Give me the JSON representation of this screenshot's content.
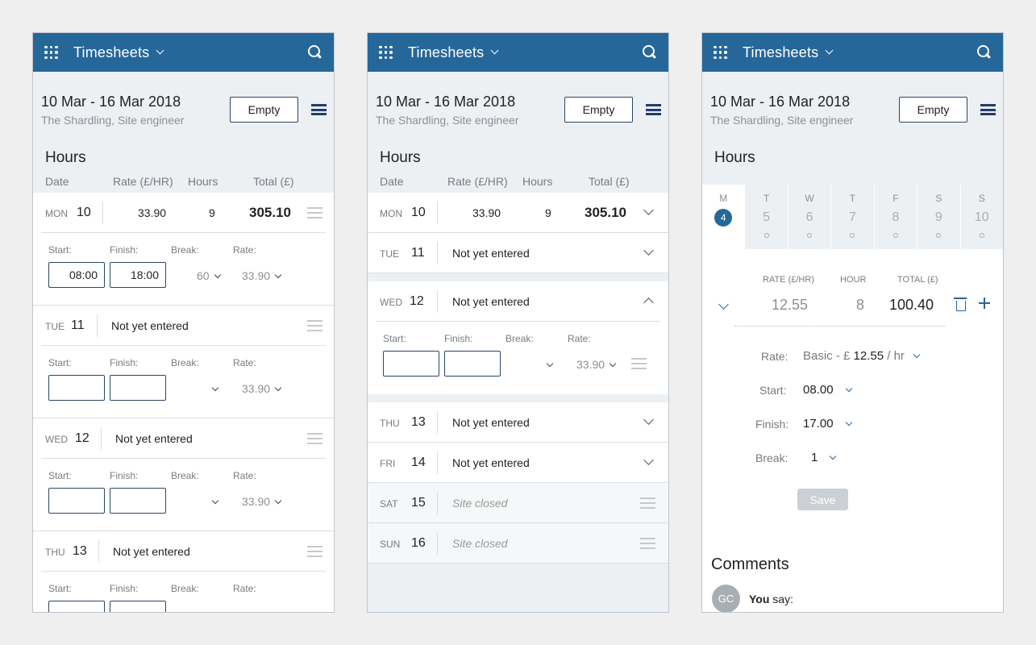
{
  "app": {
    "title": "Timesheets"
  },
  "sheet": {
    "range": "10 Mar - 16 Mar 2018",
    "subtitle": "The Shardling, Site engineer",
    "empty_label": "Empty",
    "hours_title": "Hours"
  },
  "columns": {
    "date": "Date",
    "rate": "Rate (£/HR)",
    "hours": "Hours",
    "total": "Total (£)"
  },
  "labels": {
    "start": "Start:",
    "finish": "Finish:",
    "break": "Break:",
    "rate": "Rate:"
  },
  "panel1": {
    "mon": {
      "dow": "MON",
      "num": "10",
      "rate": "33.90",
      "hours": "9",
      "total": "305.10",
      "start": "08:00",
      "finish": "18:00",
      "break": "60",
      "rate_sel": "33.90"
    },
    "tue": {
      "dow": "TUE",
      "num": "11",
      "status": "Not yet entered",
      "rate_sel": "33.90"
    },
    "wed": {
      "dow": "WED",
      "num": "12",
      "status": "Not yet entered",
      "rate_sel": "33.90"
    },
    "thu": {
      "dow": "THU",
      "num": "13",
      "status": "Not yet entered"
    }
  },
  "panel2": {
    "mon": {
      "dow": "MON",
      "num": "10",
      "rate": "33.90",
      "hours": "9",
      "total": "305.10"
    },
    "tue": {
      "dow": "TUE",
      "num": "11",
      "status": "Not yet entered"
    },
    "wed": {
      "dow": "WED",
      "num": "12",
      "status": "Not yet entered",
      "rate_sel": "33.90"
    },
    "thu": {
      "dow": "THU",
      "num": "13",
      "status": "Not yet entered"
    },
    "fri": {
      "dow": "FRI",
      "num": "14",
      "status": "Not yet entered"
    },
    "sat": {
      "dow": "SAT",
      "num": "15",
      "status": "Site closed"
    },
    "sun": {
      "dow": "SUN",
      "num": "16",
      "status": "Site closed"
    }
  },
  "panel3": {
    "days": [
      {
        "letter": "M",
        "num": "4"
      },
      {
        "letter": "T",
        "num": "5"
      },
      {
        "letter": "W",
        "num": "6"
      },
      {
        "letter": "T",
        "num": "7"
      },
      {
        "letter": "F",
        "num": "8"
      },
      {
        "letter": "S",
        "num": "9"
      },
      {
        "letter": "S",
        "num": "10"
      }
    ],
    "head_rate": "RATE (£/HR)",
    "head_hour": "HOUR",
    "head_total": "TOTAL (£)",
    "rate": "12.55",
    "hour": "8",
    "total": "100.40",
    "rate_label": "Rate:",
    "rate_value_prefix": "Basic - £ ",
    "rate_value_amount": "12.55",
    "rate_value_suffix": " / hr",
    "start_label": "Start:",
    "start_value": "08.00",
    "finish_label": "Finish:",
    "finish_value": "17.00",
    "break_label": "Break:",
    "break_value": "1",
    "save_label": "Save",
    "comments_title": "Comments",
    "avatar_initials": "GC",
    "comment_author": "You",
    "comment_says": " say:"
  },
  "colors": {
    "header": "#26679a",
    "accent": "#233a6b"
  }
}
